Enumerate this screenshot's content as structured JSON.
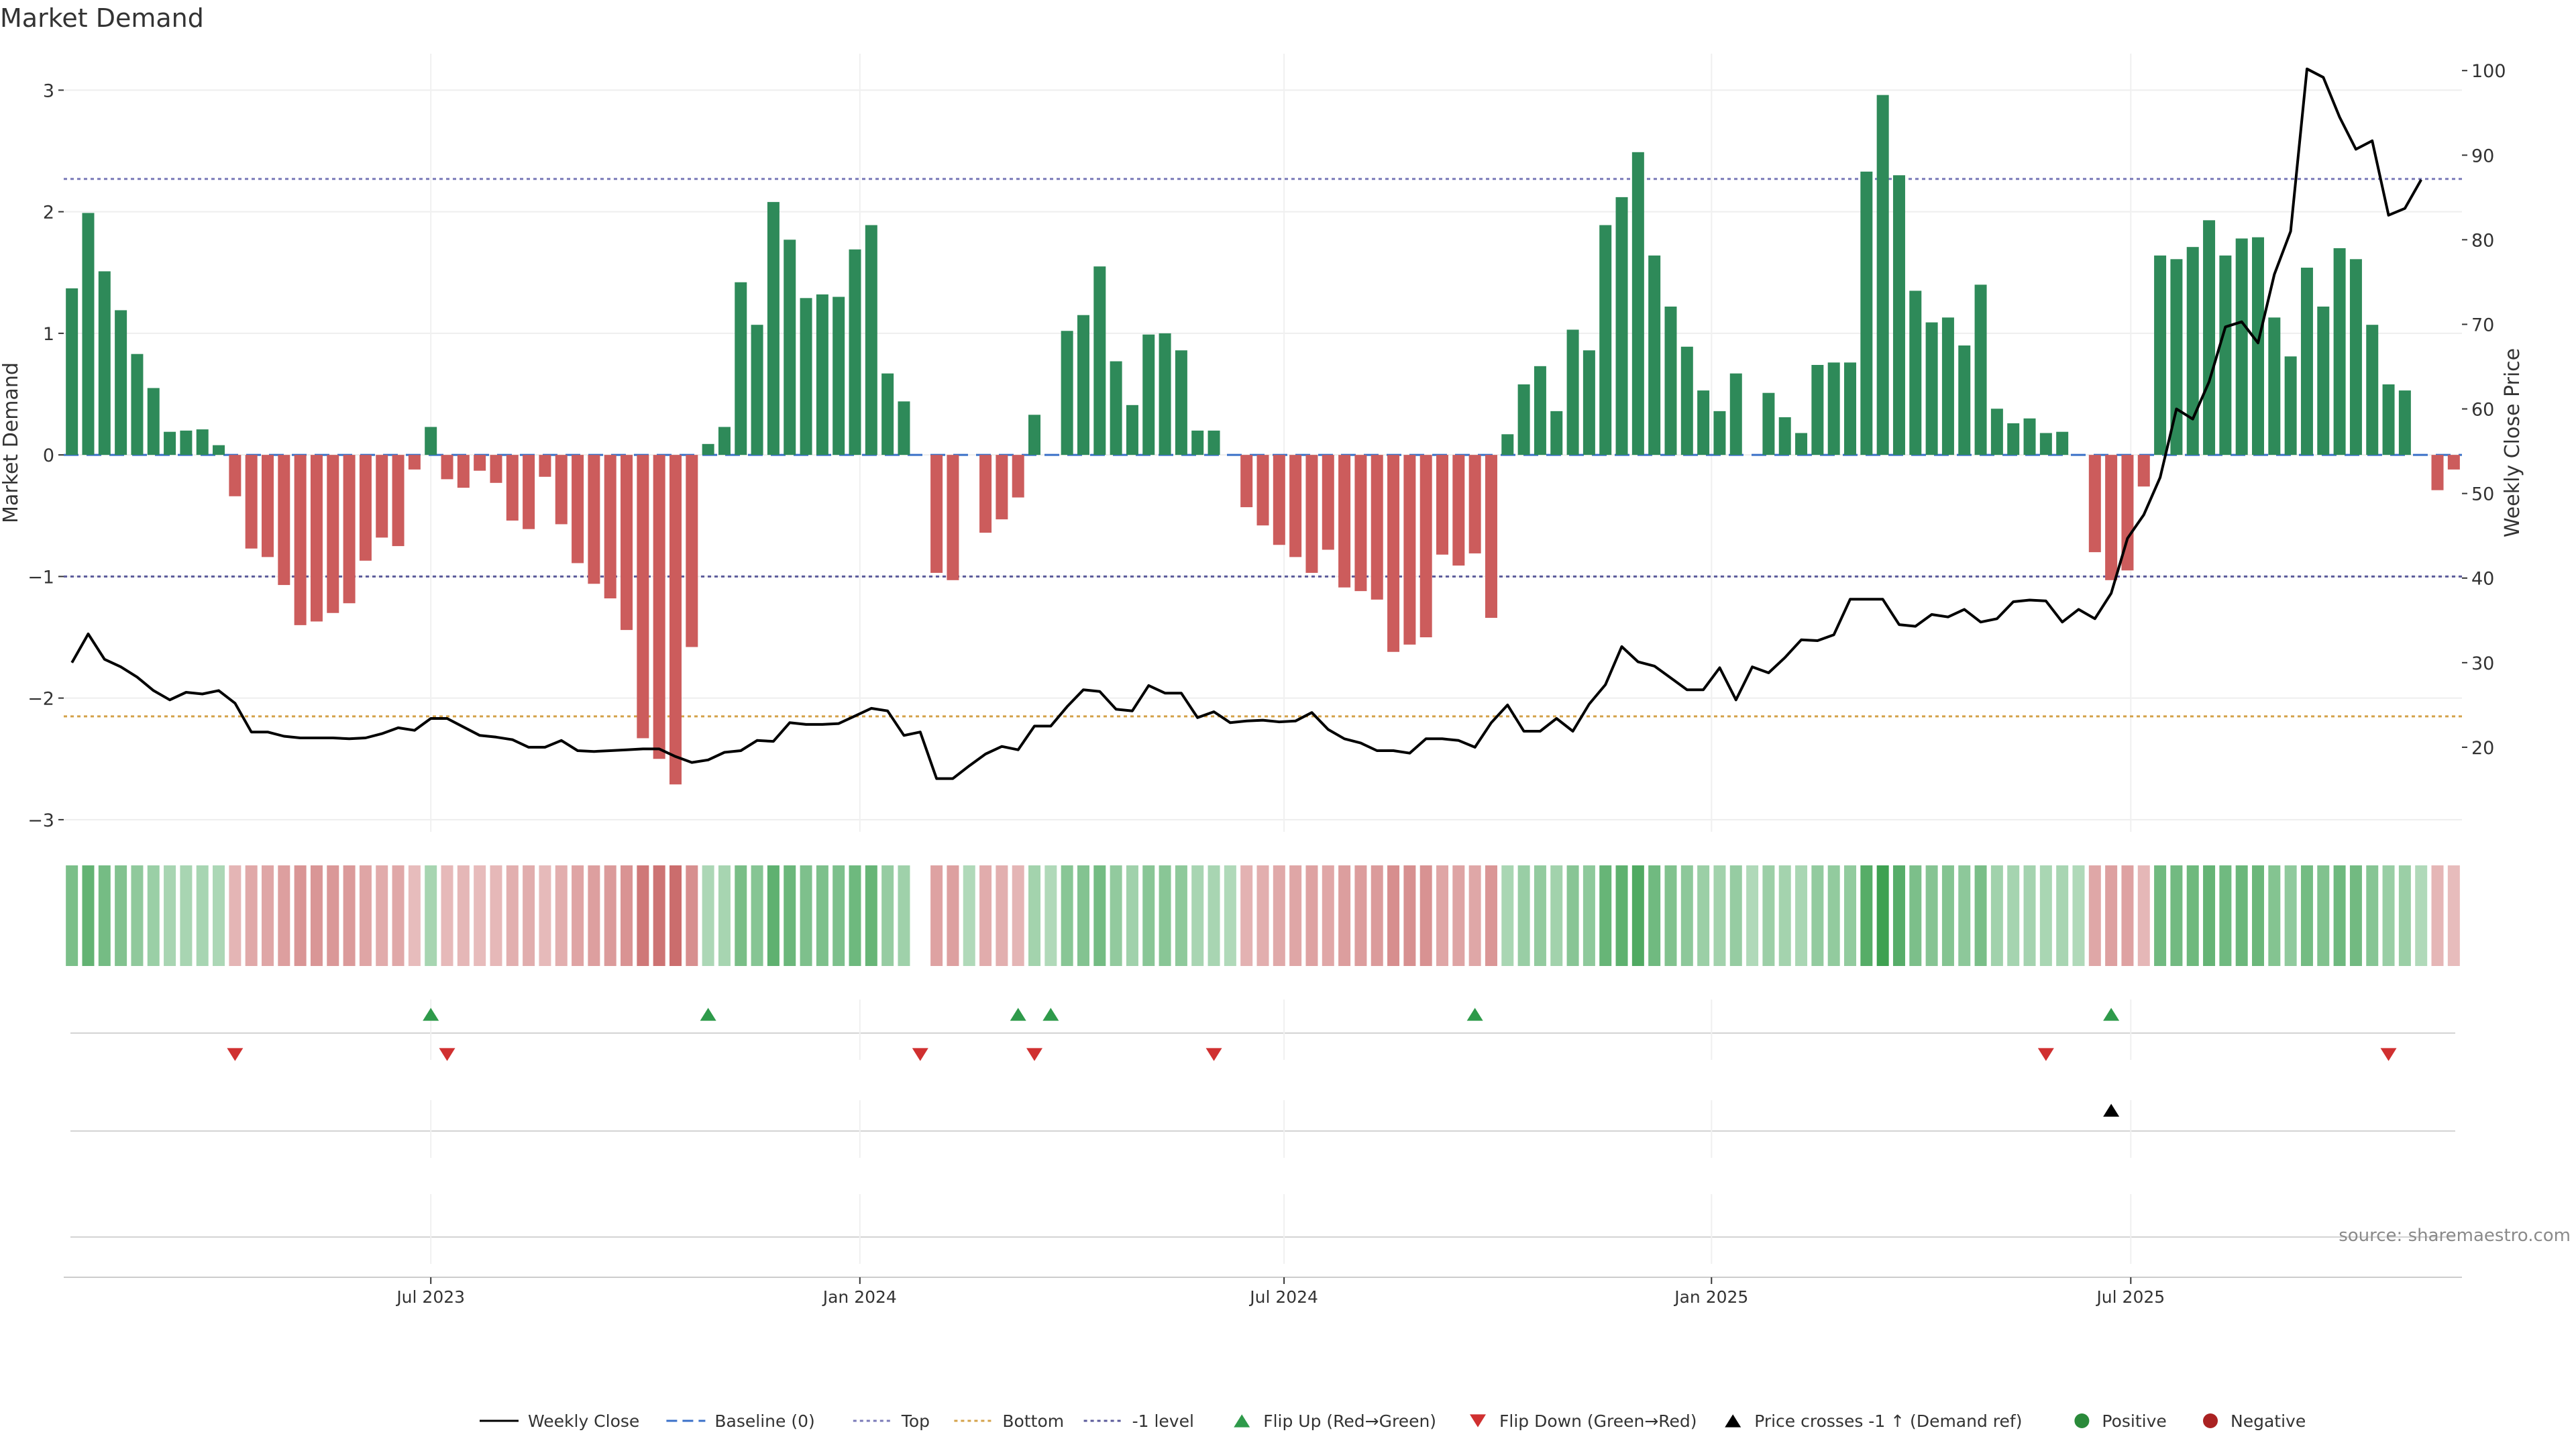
{
  "chart_data": {
    "type": "bar",
    "title": "Market Demand",
    "ylabel": "Market Demand",
    "y2label": "Weekly Close Price",
    "ylim": [
      -3.1,
      3.3
    ],
    "y2lim": [
      10,
      102
    ],
    "yticks": [
      3,
      2,
      1,
      0,
      -1,
      -2,
      -3
    ],
    "y2ticks": [
      100,
      90,
      80,
      70,
      60,
      50,
      40,
      30,
      20
    ],
    "yticks_label": [
      "3",
      "2",
      "1",
      "0",
      "−1",
      "−2",
      "−3"
    ],
    "y2ticks_label": [
      "100",
      "90",
      "80",
      "70",
      "60",
      "50",
      "40",
      "30",
      "20"
    ],
    "xticks": [
      {
        "label": "Jul 2023",
        "week": 22
      },
      {
        "label": "Jan 2024",
        "week": 48.3
      },
      {
        "label": "Jul 2024",
        "week": 74.3
      },
      {
        "label": "Jan 2025",
        "week": 100.5
      },
      {
        "label": "Jul 2025",
        "week": 126.2
      }
    ],
    "reference_lines": {
      "top": 2.27,
      "bottom": -2.15,
      "minus_one": -1.0,
      "baseline": 0
    },
    "demand": [
      1.37,
      1.99,
      1.51,
      1.19,
      0.83,
      0.55,
      0.19,
      0.2,
      0.21,
      0.08,
      -0.34,
      -0.77,
      -0.84,
      -1.07,
      -1.4,
      -1.37,
      -1.3,
      -1.22,
      -0.87,
      -0.68,
      -0.75,
      -0.12,
      0.23,
      -0.2,
      -0.27,
      -0.13,
      -0.23,
      -0.54,
      -0.61,
      -0.18,
      -0.57,
      -0.89,
      -1.06,
      -1.18,
      -1.44,
      -2.33,
      -2.5,
      -2.71,
      -1.58,
      0.09,
      0.23,
      1.42,
      1.07,
      2.08,
      1.77,
      1.29,
      1.32,
      1.3,
      1.69,
      1.89,
      0.67,
      0.44,
      0,
      -0.97,
      -1.03,
      0,
      -0.64,
      -0.53,
      -0.35,
      0.33,
      0,
      1.02,
      1.15,
      1.55,
      0.77,
      0.41,
      0.99,
      1.0,
      0.86,
      0.2,
      0.2,
      0,
      -0.43,
      -0.58,
      -0.74,
      -0.84,
      -0.97,
      -0.78,
      -1.09,
      -1.12,
      -1.19,
      -1.62,
      -1.56,
      -1.5,
      -0.82,
      -0.91,
      -0.81,
      -1.34,
      0.17,
      0.58,
      0.73,
      0.36,
      1.03,
      0.86,
      1.89,
      2.12,
      2.49,
      1.64,
      1.22,
      0.89,
      0.53,
      0.36,
      0.67,
      0,
      0.51,
      0.31,
      0.18,
      0.74,
      0.76,
      0.76,
      2.33,
      2.96,
      2.3,
      1.35,
      1.09,
      1.13,
      0.9,
      1.4,
      0.38,
      0.26,
      0.3,
      0.18,
      0.19,
      0,
      -0.8,
      -1.03,
      -0.95,
      -0.26,
      1.64,
      1.61,
      1.71,
      1.93,
      1.64,
      1.78,
      1.79,
      1.13,
      0.81,
      1.54,
      1.22,
      1.7,
      1.61,
      1.07,
      0.58,
      0.53,
      0,
      -0.29,
      -0.12
    ],
    "price": [
      30,
      33.4,
      30.4,
      29.5,
      28.3,
      26.7,
      25.6,
      26.5,
      26.3,
      26.7,
      25.2,
      21.8,
      21.8,
      21.3,
      21.1,
      21.1,
      21.1,
      21.0,
      21.1,
      21.6,
      22.3,
      22.0,
      23.4,
      23.4,
      22.4,
      21.4,
      21.2,
      20.9,
      20.0,
      20.0,
      20.8,
      19.6,
      19.5,
      19.6,
      19.7,
      19.8,
      19.8,
      18.9,
      18.2,
      18.5,
      19.4,
      19.6,
      20.8,
      20.7,
      22.9,
      22.7,
      22.7,
      22.8,
      23.7,
      24.6,
      24.3,
      21.4,
      21.8,
      16.3,
      16.3,
      17.8,
      19.2,
      20.1,
      19.7,
      22.5,
      22.5,
      24.8,
      26.8,
      26.6,
      24.5,
      24.3,
      27.3,
      26.4,
      26.4,
      23.5,
      24.2,
      22.9,
      23.1,
      23.2,
      23.0,
      23.1,
      24.1,
      22.1,
      21.0,
      20.5,
      19.6,
      19.6,
      19.3,
      21.0,
      21.0,
      20.8,
      20.0,
      22.9,
      25.0,
      21.9,
      21.9,
      23.4,
      21.9,
      25.1,
      27.4,
      31.9,
      30.1,
      29.6,
      28.2,
      26.8,
      26.8,
      29.4,
      25.6,
      29.5,
      28.8,
      30.6,
      32.7,
      32.6,
      33.3,
      37.5,
      37.5,
      37.5,
      34.5,
      34.3,
      35.7,
      35.4,
      36.3,
      34.8,
      35.2,
      37.2,
      37.4,
      37.3,
      34.8,
      36.3,
      35.2,
      38.2,
      44.7,
      47.5,
      51.9,
      60.0,
      58.8,
      63.2,
      69.7,
      70.3,
      67.8,
      75.9,
      81.0,
      100.2,
      99.2,
      94.5,
      90.7,
      91.7,
      82.9,
      83.7,
      87.1
    ],
    "heat_strip": {
      "gap_weeks": [
        52
      ]
    },
    "flip_up_weeks": [
      22,
      39,
      58,
      60,
      86,
      125
    ],
    "flip_down_weeks": [
      10,
      23,
      52,
      59,
      70,
      121,
      142
    ],
    "price_cross_weeks": [
      125
    ],
    "series": [
      {
        "name": "Weekly Close",
        "color": "#000000"
      },
      {
        "name": "Baseline (0)",
        "color": "#3a70c8"
      },
      {
        "name": "Top",
        "color": "#7a7ab8"
      },
      {
        "name": "Bottom",
        "color": "#d4a24a"
      },
      {
        "name": "-1 level",
        "color": "#5a5a9a"
      },
      {
        "name": "Flip Up (Red→Green)",
        "color": "#2e9a4a"
      },
      {
        "name": "Flip Down (Green→Red)",
        "color": "#d03030"
      },
      {
        "name": "Price crosses -1 ↑ (Demand ref)",
        "color": "#000000"
      },
      {
        "name": "Positive",
        "color": "#2a8a3a"
      },
      {
        "name": "Negative",
        "color": "#aa2222"
      }
    ],
    "colors": {
      "positive": "#2e8a59",
      "negative": "#cc5c5c"
    },
    "source_note": "source: sharemaestro.com",
    "legend_position": "bottom"
  }
}
